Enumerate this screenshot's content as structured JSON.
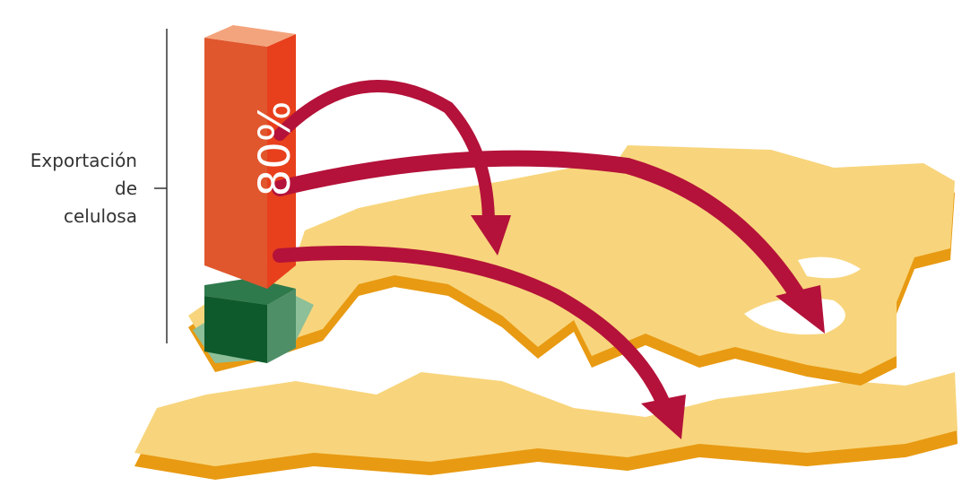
{
  "annotation": {
    "lines": [
      "Exportación",
      "de",
      "celulosa"
    ]
  },
  "bar": {
    "label": "80%"
  }
}
